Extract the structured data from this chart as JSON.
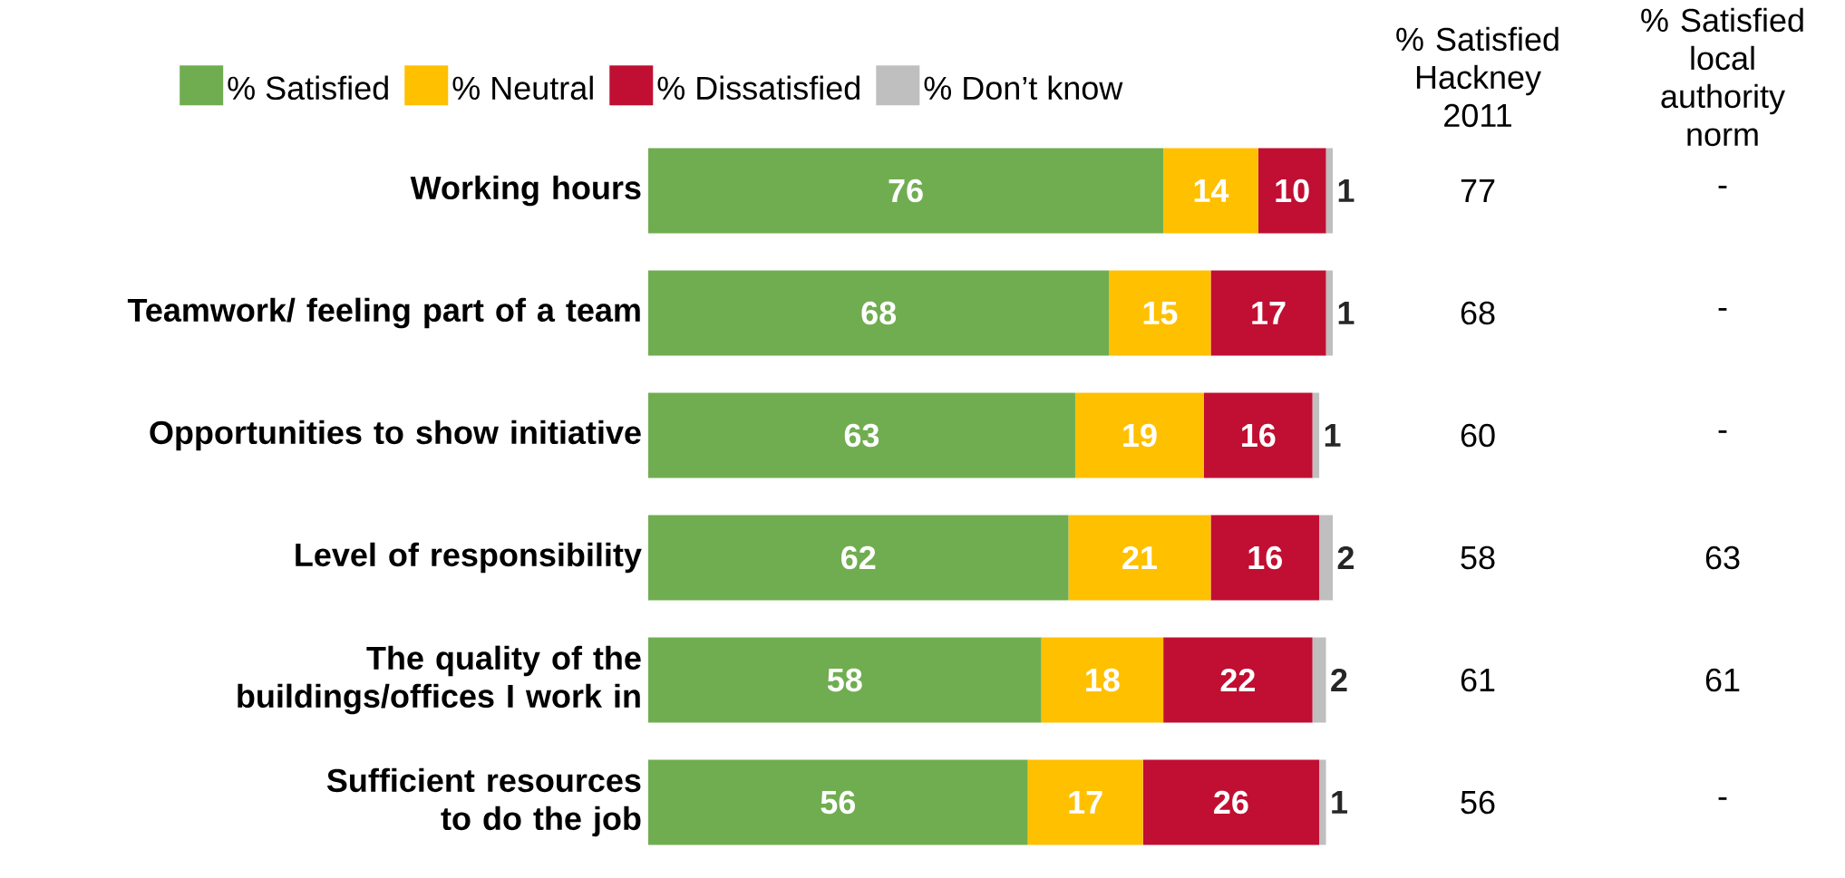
{
  "chart_data": {
    "type": "bar",
    "orientation": "horizontal",
    "stacked": true,
    "data_labels": true,
    "legend": "top left",
    "categories": [
      "Working hours",
      "Teamwork/ feeling part of a team",
      "Opportunities to show initiative",
      "Level of responsibility",
      "The quality of the buildings/offices I work in",
      "Sufficient resources to do the job"
    ],
    "series": [
      {
        "name": "% Satisfied",
        "color": "#70ad50",
        "values": [
          76,
          68,
          63,
          62,
          58,
          56
        ]
      },
      {
        "name": "% Neutral",
        "color": "#ffc000",
        "values": [
          14,
          15,
          19,
          21,
          18,
          17
        ]
      },
      {
        "name": "% Dissatisfied",
        "color": "#c00f32",
        "values": [
          10,
          17,
          16,
          16,
          22,
          26
        ]
      },
      {
        "name": "% Don’t know",
        "color": "#bfbfbf",
        "values": [
          1,
          1,
          1,
          2,
          2,
          1
        ]
      }
    ],
    "annotations": [
      "% Satisfied Hackney 2011",
      "% Satisfied local authority norm",
      "77",
      "-",
      "68",
      "-",
      "60",
      "-",
      "58",
      "63",
      "61",
      "61",
      "56",
      "-"
    ]
  }
}
